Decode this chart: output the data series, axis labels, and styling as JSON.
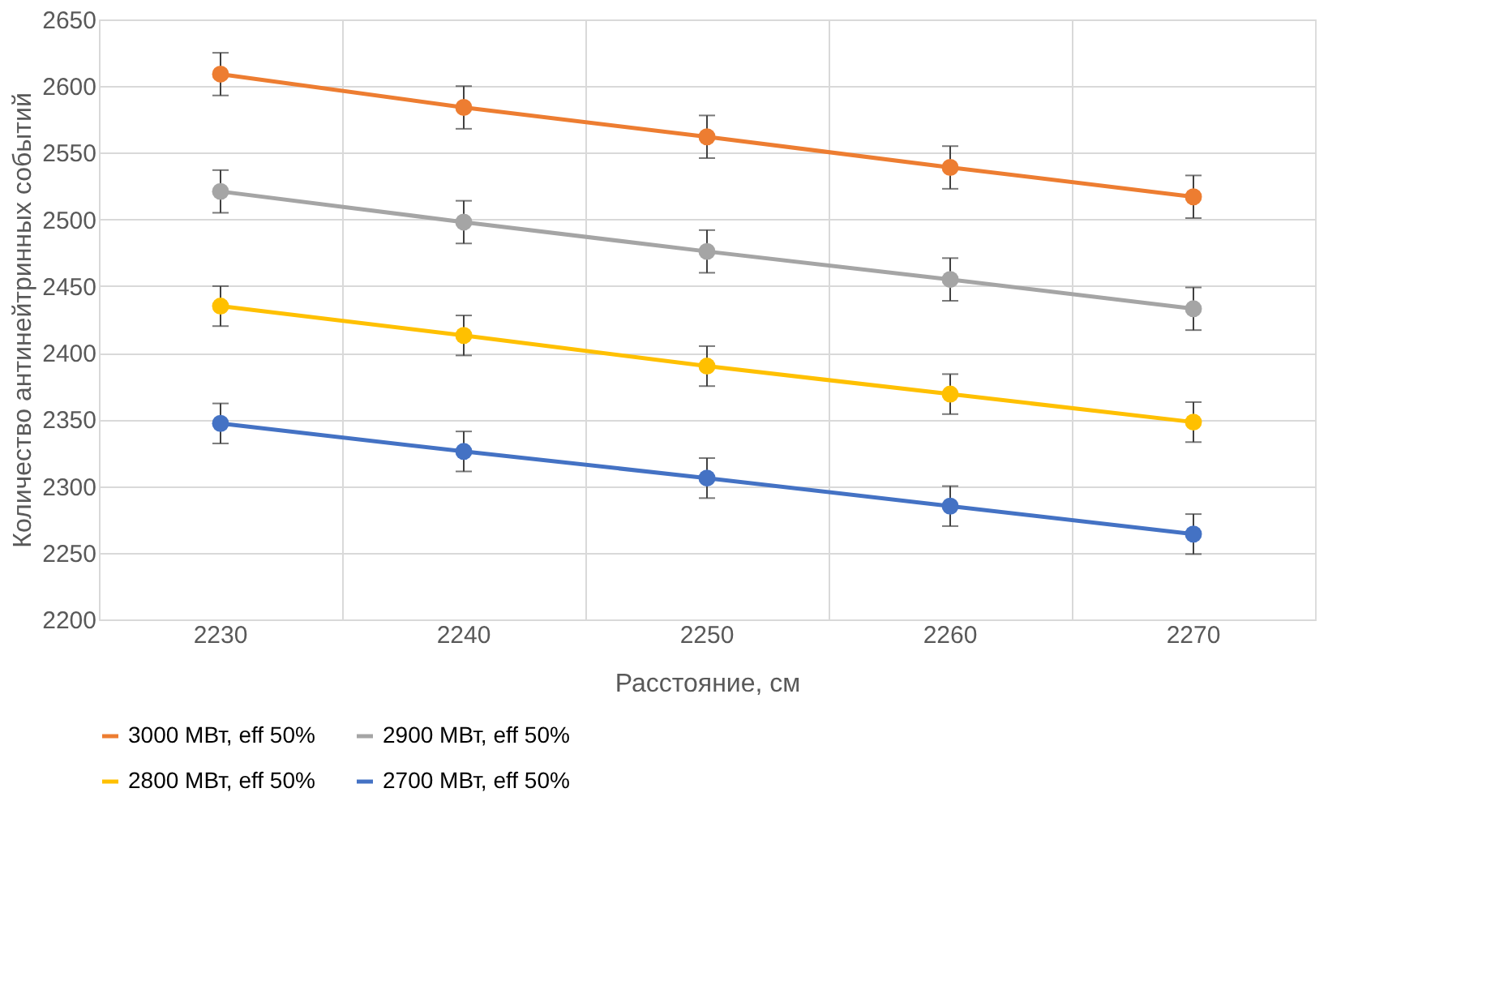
{
  "chart_data": {
    "type": "line",
    "xlabel": "Расстояние, см",
    "ylabel": "Количество антинейтринных событий",
    "categories": [
      "2230",
      "2240",
      "2250",
      "2260",
      "2270"
    ],
    "ylim": [
      2200,
      2650
    ],
    "yticks": [
      2200,
      2250,
      2300,
      2350,
      2400,
      2450,
      2500,
      2550,
      2600,
      2650
    ],
    "grid": true,
    "legend": "bottom",
    "marker": "circle",
    "line_style": "solid",
    "series": [
      {
        "name": "3000 МВт, eff 50%",
        "color": "#ed7d31",
        "values": [
          2609,
          2584,
          2562,
          2539,
          2517
        ],
        "errors": [
          16,
          16,
          16,
          16,
          16
        ]
      },
      {
        "name": "2900 МВт, eff 50%",
        "color": "#a5a5a5",
        "values": [
          2521,
          2498,
          2476,
          2455,
          2433
        ],
        "errors": [
          16,
          16,
          16,
          16,
          16
        ]
      },
      {
        "name": "2800 МВт, eff 50%",
        "color": "#ffc000",
        "values": [
          2435,
          2413,
          2390,
          2369,
          2348
        ],
        "errors": [
          15,
          15,
          15,
          15,
          15
        ]
      },
      {
        "name": "2700 МВт, eff 50%",
        "color": "#4472c4",
        "values": [
          2347,
          2326,
          2306,
          2285,
          2264
        ],
        "errors": [
          15,
          15,
          15,
          15,
          15
        ]
      }
    ]
  }
}
